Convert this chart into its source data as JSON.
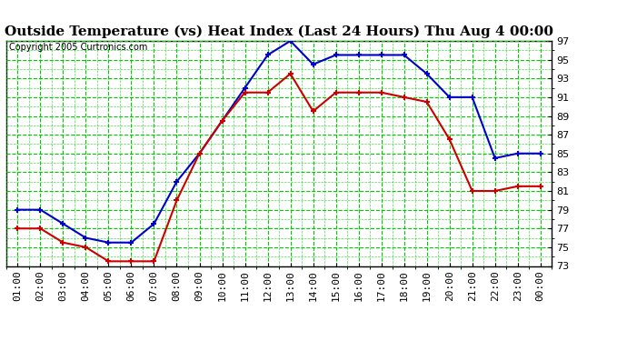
{
  "title": "Outside Temperature (vs) Heat Index (Last 24 Hours) Thu Aug 4 00:00",
  "copyright": "Copyright 2005 Curtronics.com",
  "x_labels": [
    "01:00",
    "02:00",
    "03:00",
    "04:00",
    "05:00",
    "06:00",
    "07:00",
    "08:00",
    "09:00",
    "10:00",
    "11:00",
    "12:00",
    "13:00",
    "14:00",
    "15:00",
    "16:00",
    "17:00",
    "18:00",
    "19:00",
    "20:00",
    "21:00",
    "22:00",
    "23:00",
    "00:00"
  ],
  "y_min": 73.0,
  "y_max": 97.0,
  "y_ticks": [
    73.0,
    75.0,
    77.0,
    79.0,
    81.0,
    83.0,
    85.0,
    87.0,
    89.0,
    91.0,
    93.0,
    95.0,
    97.0
  ],
  "blue_data": [
    79.0,
    79.0,
    77.5,
    76.0,
    75.5,
    75.5,
    77.5,
    82.0,
    85.0,
    88.5,
    92.0,
    95.5,
    97.0,
    94.5,
    95.5,
    95.5,
    95.5,
    95.5,
    93.5,
    91.0,
    91.0,
    84.5,
    85.0,
    85.0
  ],
  "red_data": [
    77.0,
    77.0,
    75.5,
    75.0,
    73.5,
    73.5,
    73.5,
    80.0,
    85.0,
    88.5,
    91.5,
    91.5,
    93.5,
    89.5,
    91.5,
    91.5,
    91.5,
    91.0,
    90.5,
    86.5,
    81.0,
    81.0,
    81.5,
    81.5
  ],
  "blue_color": "#0000cc",
  "red_color": "#cc0000",
  "grid_color": "#00cc00",
  "bg_color": "#ffffff",
  "title_fontsize": 11,
  "label_fontsize": 8,
  "copyright_fontsize": 7,
  "linewidth": 1.5,
  "markersize": 5
}
